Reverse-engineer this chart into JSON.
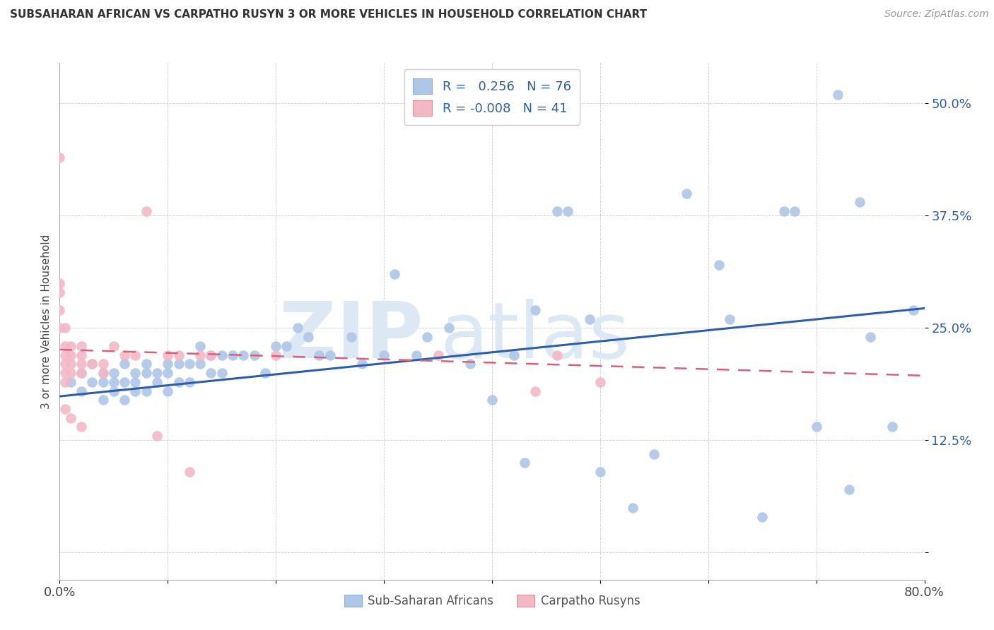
{
  "title": "SUBSAHARAN AFRICAN VS CARPATHO RUSYN 3 OR MORE VEHICLES IN HOUSEHOLD CORRELATION CHART",
  "source": "Source: ZipAtlas.com",
  "ylabel": "3 or more Vehicles in Household",
  "yticks": [
    0.0,
    0.125,
    0.25,
    0.375,
    0.5
  ],
  "ytick_labels": [
    "",
    "12.5%",
    "25.0%",
    "37.5%",
    "50.0%"
  ],
  "xlim": [
    0.0,
    0.8
  ],
  "ylim": [
    -0.03,
    0.545
  ],
  "legend_R_blue": "0.256",
  "legend_N_blue": "76",
  "legend_R_pink": "-0.008",
  "legend_N_pink": "41",
  "blue_color": "#aec6e8",
  "pink_color": "#f2b8c6",
  "trend_blue": "#2e5eaa",
  "trend_pink": "#d9607a",
  "blue_scatter_x": [
    0.01,
    0.02,
    0.02,
    0.03,
    0.03,
    0.04,
    0.04,
    0.04,
    0.05,
    0.05,
    0.05,
    0.06,
    0.06,
    0.06,
    0.07,
    0.07,
    0.07,
    0.08,
    0.08,
    0.08,
    0.09,
    0.09,
    0.1,
    0.1,
    0.1,
    0.11,
    0.11,
    0.12,
    0.12,
    0.13,
    0.13,
    0.14,
    0.14,
    0.15,
    0.15,
    0.16,
    0.17,
    0.18,
    0.19,
    0.2,
    0.21,
    0.22,
    0.23,
    0.24,
    0.25,
    0.27,
    0.28,
    0.3,
    0.31,
    0.33,
    0.34,
    0.36,
    0.38,
    0.4,
    0.42,
    0.43,
    0.44,
    0.46,
    0.47,
    0.49,
    0.5,
    0.53,
    0.55,
    0.58,
    0.61,
    0.62,
    0.67,
    0.7,
    0.72,
    0.73,
    0.74,
    0.75,
    0.77,
    0.79,
    0.65,
    0.68
  ],
  "blue_scatter_y": [
    0.19,
    0.2,
    0.18,
    0.21,
    0.19,
    0.2,
    0.19,
    0.17,
    0.2,
    0.19,
    0.18,
    0.21,
    0.19,
    0.17,
    0.2,
    0.19,
    0.18,
    0.21,
    0.2,
    0.18,
    0.2,
    0.19,
    0.21,
    0.2,
    0.18,
    0.21,
    0.19,
    0.21,
    0.19,
    0.23,
    0.21,
    0.22,
    0.2,
    0.22,
    0.2,
    0.22,
    0.22,
    0.22,
    0.2,
    0.23,
    0.23,
    0.25,
    0.24,
    0.22,
    0.22,
    0.24,
    0.21,
    0.22,
    0.31,
    0.22,
    0.24,
    0.25,
    0.21,
    0.17,
    0.22,
    0.1,
    0.27,
    0.38,
    0.38,
    0.26,
    0.09,
    0.05,
    0.11,
    0.4,
    0.32,
    0.26,
    0.38,
    0.14,
    0.51,
    0.07,
    0.39,
    0.24,
    0.14,
    0.27,
    0.04,
    0.38
  ],
  "pink_scatter_x": [
    0.0,
    0.0,
    0.0,
    0.0,
    0.0,
    0.005,
    0.005,
    0.005,
    0.005,
    0.005,
    0.005,
    0.005,
    0.01,
    0.01,
    0.01,
    0.01,
    0.01,
    0.02,
    0.02,
    0.02,
    0.02,
    0.02,
    0.03,
    0.03,
    0.04,
    0.04,
    0.05,
    0.06,
    0.07,
    0.08,
    0.09,
    0.1,
    0.11,
    0.12,
    0.13,
    0.14,
    0.2,
    0.35,
    0.44,
    0.46,
    0.5
  ],
  "pink_scatter_y": [
    0.44,
    0.3,
    0.29,
    0.27,
    0.25,
    0.25,
    0.23,
    0.22,
    0.21,
    0.2,
    0.19,
    0.16,
    0.23,
    0.22,
    0.21,
    0.2,
    0.15,
    0.23,
    0.22,
    0.21,
    0.2,
    0.14,
    0.21,
    0.21,
    0.21,
    0.2,
    0.23,
    0.22,
    0.22,
    0.38,
    0.13,
    0.22,
    0.22,
    0.09,
    0.22,
    0.22,
    0.22,
    0.22,
    0.18,
    0.22,
    0.19
  ],
  "blue_trend_start_y": 0.174,
  "blue_trend_end_y": 0.272,
  "pink_trend_start_y": 0.226,
  "pink_trend_end_y": 0.197
}
